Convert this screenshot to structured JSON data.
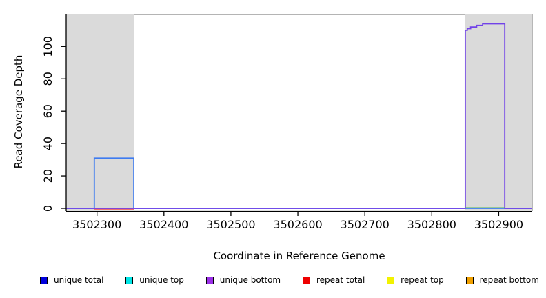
{
  "chart_data": {
    "type": "area",
    "title": "",
    "xlabel": "Coordinate in Reference Genome",
    "ylabel": "Read Coverage Depth",
    "xlim": [
      3502254,
      3502950
    ],
    "ylim": [
      0,
      120
    ],
    "x_ticks": [
      3502300,
      3502400,
      3502500,
      3502600,
      3502700,
      3502800,
      3502900
    ],
    "y_ticks": [
      0,
      20,
      40,
      60,
      80,
      100
    ],
    "grid": false,
    "legend_position": "bottom",
    "colors": {
      "shaded_region": "#DADADA",
      "frame": "#878787",
      "axis": "#000000",
      "tick_label": "#000000"
    },
    "shaded_regions": [
      {
        "name": "repeat-region-left",
        "x0": 3502254,
        "x1": 3502355
      },
      {
        "name": "repeat-region-right",
        "x0": 3502850,
        "x1": 3502950
      }
    ],
    "series": [
      {
        "name": "unique total",
        "line_color": "#3D7BF0",
        "points": [
          [
            3502254,
            0
          ],
          [
            3502296,
            0
          ],
          [
            3502296,
            31
          ],
          [
            3502355,
            31
          ],
          [
            3502355,
            0
          ],
          [
            3502950,
            0
          ]
        ]
      },
      {
        "name": "unique bottom",
        "line_color": "#7142E8",
        "points": [
          [
            3502254,
            0
          ],
          [
            3502850,
            0
          ],
          [
            3502850,
            110
          ],
          [
            3502853,
            110
          ],
          [
            3502853,
            111
          ],
          [
            3502858,
            111
          ],
          [
            3502858,
            112
          ],
          [
            3502867,
            112
          ],
          [
            3502867,
            113
          ],
          [
            3502876,
            113
          ],
          [
            3502876,
            114
          ],
          [
            3502909,
            114
          ],
          [
            3502909,
            0
          ],
          [
            3502950,
            0
          ]
        ]
      }
    ],
    "baseline_overlays": [
      {
        "name": "repeat-total-zero-segment",
        "color": "#F06060",
        "x0": 3502296,
        "x1": 3502355,
        "dy": 1.2
      },
      {
        "name": "overlap-zero-segment-green",
        "color": "#55B855",
        "x0": 3502850,
        "x1": 3502909,
        "dy": -0.8
      }
    ]
  },
  "legend": [
    {
      "label": "unique total",
      "color": "#0000DD"
    },
    {
      "label": "unique top",
      "color": "#00E6E6"
    },
    {
      "label": "unique bottom",
      "color": "#9B30E8"
    },
    {
      "label": "repeat total",
      "color": "#EE0000"
    },
    {
      "label": "repeat top",
      "color": "#F2F200"
    },
    {
      "label": "repeat bottom",
      "color": "#F0A000"
    }
  ]
}
